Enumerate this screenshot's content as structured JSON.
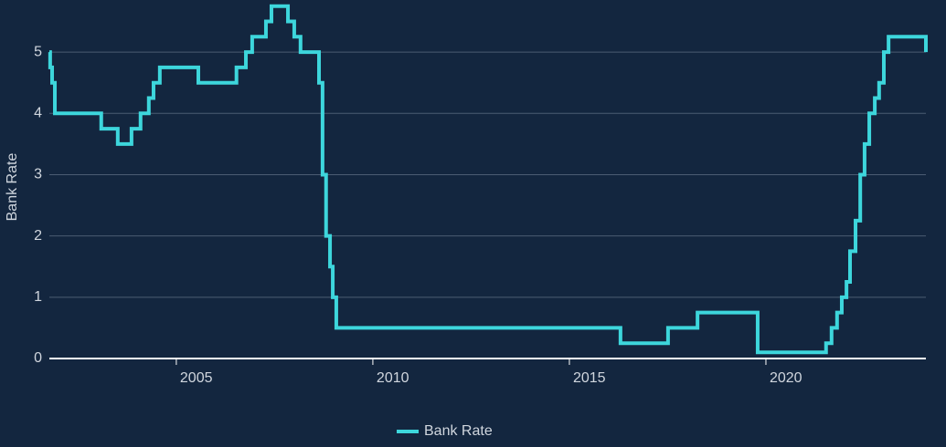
{
  "chart_data": {
    "type": "line",
    "step": "post",
    "y_label": "Bank Rate",
    "x": [
      2001.77,
      2001.79,
      2001.84,
      2001.91,
      2003.09,
      2003.51,
      2003.86,
      2004.09,
      2004.3,
      2004.42,
      2004.58,
      2005.56,
      2006.53,
      2006.77,
      2006.93,
      2007.28,
      2007.42,
      2007.84,
      2008.0,
      2008.16,
      2008.63,
      2008.72,
      2008.81,
      2008.91,
      2008.98,
      2009.07,
      2016.3,
      2017.51,
      2018.26,
      2019.79,
      2021.53,
      2021.67,
      2021.81,
      2021.93,
      2022.05,
      2022.14,
      2022.28,
      2022.4,
      2022.51,
      2022.63,
      2022.77,
      2022.88,
      2023.0,
      2023.12,
      2024.07
    ],
    "series": [
      {
        "name": "Bank Rate",
        "color": "#3dd6dc",
        "values": [
          5.0,
          4.75,
          4.5,
          4.0,
          3.75,
          3.5,
          3.75,
          4.0,
          4.25,
          4.5,
          4.75,
          4.5,
          4.75,
          5.0,
          5.25,
          5.5,
          5.75,
          5.5,
          5.25,
          5.0,
          4.5,
          3.0,
          2.0,
          1.5,
          1.0,
          0.5,
          0.25,
          0.5,
          0.75,
          0.1,
          0.25,
          0.5,
          0.75,
          1.0,
          1.25,
          1.75,
          2.25,
          3.0,
          3.5,
          4.0,
          4.25,
          4.5,
          5.0,
          5.25,
          5.0
        ]
      }
    ],
    "xlim": [
      2001.77,
      2024.07
    ],
    "ylim": [
      0,
      5.85
    ],
    "xticks": [
      2005,
      2010,
      2015,
      2020
    ],
    "yticks": [
      0,
      1,
      2,
      3,
      4,
      5
    ],
    "grid": true,
    "legend": "bottom"
  }
}
